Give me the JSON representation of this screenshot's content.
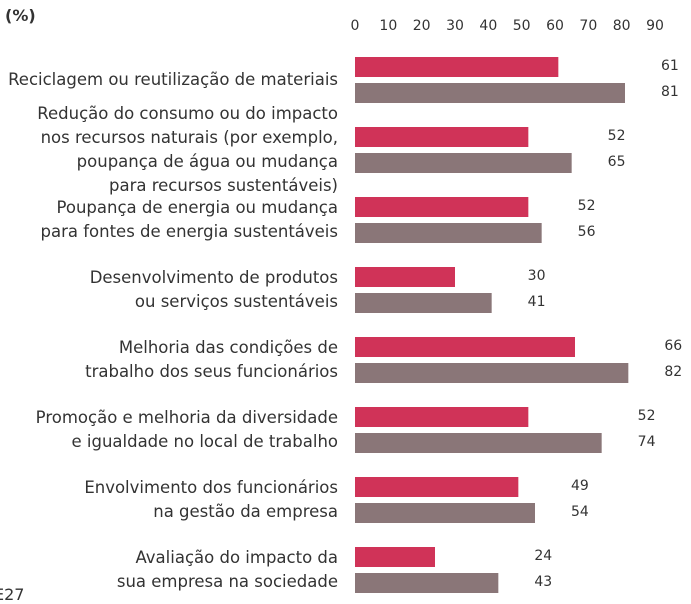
{
  "chart_data": {
    "type": "bar",
    "orientation": "horizontal",
    "unit_label": "(%)",
    "annotation": "E27",
    "categories": [
      "Reciclagem ou reutilização de materiais",
      "Redução do consumo ou do impacto\nnos recursos naturais (por exemplo,\npoupança de água ou mudança\npara recursos sustentáveis)",
      "Poupança de energia ou mudança\npara fontes de energia sustentáveis",
      "Desenvolvimento de produtos\nou serviços sustentáveis",
      "Melhoria das condições de\ntrabalho dos seus funcionários",
      "Promoção e melhoria da diversidade\ne igualdade no local de trabalho",
      "Envolvimento dos funcionários\nna gestão da empresa",
      "Avaliação do impacto da\nsua empresa na sociedade"
    ],
    "series": [
      {
        "color": "#d03358",
        "values": [
          61,
          52,
          52,
          30,
          66,
          52,
          49,
          24
        ]
      },
      {
        "color": "#8a7678",
        "values": [
          81,
          65,
          56,
          41,
          82,
          74,
          54,
          43
        ]
      }
    ],
    "xlim": [
      0,
      90
    ],
    "xticks": [
      0,
      10,
      20,
      30,
      40,
      50,
      60,
      70,
      80,
      90
    ],
    "grid": false
  }
}
